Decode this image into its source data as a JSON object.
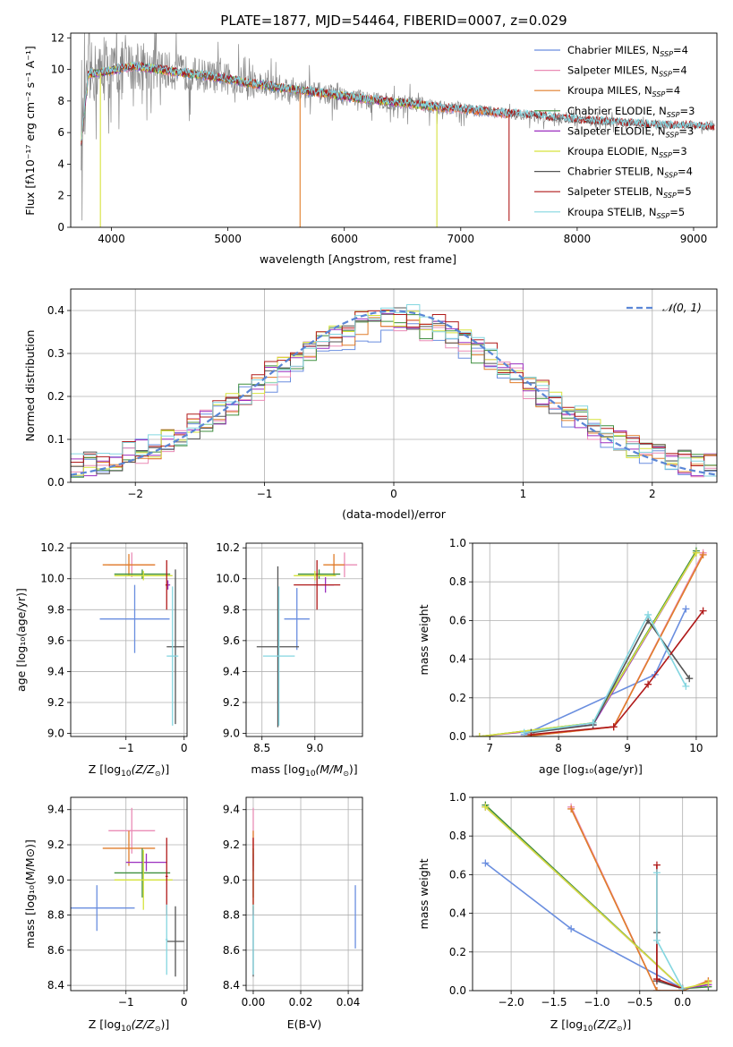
{
  "figure_title": "PLATE=1877, MJD=54464, FIBERID=0007, z=0.029",
  "series_colors": {
    "chab_miles": "#6a8edf",
    "salp_miles": "#ea8cb6",
    "krou_miles": "#e07d2a",
    "chab_elodie": "#3f8f3f",
    "salp_elodie": "#9b2fbf",
    "krou_elodie": "#d6e23c",
    "chab_stelib": "#555555",
    "salp_stelib": "#b01a1a",
    "krou_stelib": "#84d6e0",
    "data": "#888888",
    "normal": "#5a86d6"
  },
  "chart_data": [
    {
      "id": "spectrum",
      "type": "line",
      "title": "PLATE=1877, MJD=54464, FIBERID=0007, z=0.029",
      "xlabel": "wavelength [Angstrom, rest frame]",
      "ylabel": "Flux [fλ10⁻¹⁷ erg cm⁻² s⁻¹ A⁻¹]",
      "xlim": [
        3650,
        9200
      ],
      "ylim": [
        0,
        12.3
      ],
      "xticks": [
        4000,
        5000,
        6000,
        7000,
        8000,
        9000
      ],
      "yticks": [
        0,
        2,
        4,
        6,
        8,
        10,
        12
      ],
      "legend": [
        {
          "key": "chab_miles",
          "label": "Chabrier MILES, N",
          "sub": "SSP",
          "suffix": "=4"
        },
        {
          "key": "salp_miles",
          "label": "Salpeter MILES, N",
          "sub": "SSP",
          "suffix": "=4"
        },
        {
          "key": "krou_miles",
          "label": "Kroupa MILES, N",
          "sub": "SSP",
          "suffix": "=4"
        },
        {
          "key": "chab_elodie",
          "label": "Chabrier ELODIE, N",
          "sub": "SSP",
          "suffix": "=3"
        },
        {
          "key": "salp_elodie",
          "label": "Salpeter ELODIE, N",
          "sub": "SSP",
          "suffix": "=3"
        },
        {
          "key": "krou_elodie",
          "label": "Kroupa ELODIE, N",
          "sub": "SSP",
          "suffix": "=3"
        },
        {
          "key": "chab_stelib",
          "label": "Chabrier STELIB, N",
          "sub": "SSP",
          "suffix": "=4"
        },
        {
          "key": "salp_stelib",
          "label": "Salpeter STELIB, N",
          "sub": "SSP",
          "suffix": "=5"
        },
        {
          "key": "krou_stelib",
          "label": "Kroupa STELIB, N",
          "sub": "SSP",
          "suffix": "=5"
        }
      ],
      "continuum": [
        [
          3740,
          5.3
        ],
        [
          3800,
          9.7
        ],
        [
          3900,
          9.8
        ],
        [
          4000,
          9.9
        ],
        [
          4100,
          10.1
        ],
        [
          4200,
          10.2
        ],
        [
          4400,
          10.0
        ],
        [
          4600,
          9.8
        ],
        [
          4800,
          9.6
        ],
        [
          5000,
          9.4
        ],
        [
          5200,
          9.1
        ],
        [
          5400,
          8.9
        ],
        [
          5600,
          8.7
        ],
        [
          5800,
          8.5
        ],
        [
          6000,
          8.3
        ],
        [
          6200,
          8.1
        ],
        [
          6400,
          7.95
        ],
        [
          6600,
          7.8
        ],
        [
          6800,
          7.6
        ],
        [
          7000,
          7.5
        ],
        [
          7200,
          7.35
        ],
        [
          7400,
          7.2
        ],
        [
          7600,
          7.1
        ],
        [
          7800,
          6.95
        ],
        [
          8000,
          6.8
        ],
        [
          8200,
          6.7
        ],
        [
          8400,
          6.6
        ],
        [
          8600,
          6.5
        ],
        [
          8800,
          6.45
        ],
        [
          9000,
          6.4
        ],
        [
          9180,
          6.35
        ]
      ],
      "dips": [
        {
          "wave": 3905,
          "to": 0.0,
          "key": "krou_elodie"
        },
        {
          "wave": 5620,
          "to": 0.0,
          "key": "krou_miles"
        },
        {
          "wave": 6795,
          "to": 0.0,
          "key": "krou_elodie"
        },
        {
          "wave": 7415,
          "to": 0.4,
          "key": "salp_stelib"
        }
      ],
      "data_noise_amplitude": [
        [
          3740,
          3.5
        ],
        [
          4500,
          2.0
        ],
        [
          6000,
          1.0
        ],
        [
          7400,
          0.6
        ],
        [
          9000,
          0.3
        ]
      ]
    },
    {
      "id": "residuals",
      "type": "histogram",
      "xlabel": "(data-model)/error",
      "ylabel": "Normed distribution",
      "xlim": [
        -2.5,
        2.5
      ],
      "ylim": [
        0,
        0.45
      ],
      "xticks": [
        -2,
        -1,
        0,
        1,
        2
      ],
      "yticks": [
        0.0,
        0.1,
        0.2,
        0.3,
        0.4
      ],
      "legend_label": "𝒩(0, 1)",
      "normal": {
        "mean": 0,
        "sigma": 1
      }
    },
    {
      "id": "age_vs_Z",
      "type": "scatter",
      "xlabel_main": "Z [log",
      "xlabel_sub": "10",
      "xlabel_tail": "(Z/Z",
      "xlabel_sun": "⊙",
      "xlabel_end": ")]",
      "ylabel": "age  [log₁₀(age/yr)]",
      "xlim": [
        -1.95,
        0.05
      ],
      "ylim": [
        8.98,
        10.23
      ],
      "xticks": [
        -1,
        0
      ],
      "yticks": [
        9.0,
        9.2,
        9.4,
        9.6,
        9.8,
        10.0,
        10.2
      ],
      "points": [
        {
          "key": "chab_miles",
          "x": -0.85,
          "xerr": 0.6,
          "y": 9.74,
          "yerr": 0.22
        },
        {
          "key": "salp_miles",
          "x": -0.9,
          "xerr": 0.4,
          "y": 10.09,
          "yerr": 0.08
        },
        {
          "key": "krou_miles",
          "x": -0.95,
          "xerr": 0.45,
          "y": 10.09,
          "yerr": 0.07
        },
        {
          "key": "chab_elodie",
          "x": -0.72,
          "xerr": 0.48,
          "y": 10.03,
          "yerr": 0.03
        },
        {
          "key": "salp_elodie",
          "x": -0.28,
          "xerr": 0.04,
          "y": 9.96,
          "yerr": 0.03
        },
        {
          "key": "krou_elodie",
          "x": -0.7,
          "xerr": 0.5,
          "y": 10.02,
          "yerr": 0.03
        },
        {
          "key": "chab_stelib",
          "x": -0.15,
          "xerr": 0.15,
          "y": 9.56,
          "yerr": 0.5
        },
        {
          "key": "salp_stelib",
          "x": -0.3,
          "xerr": 0.02,
          "y": 9.96,
          "yerr": 0.16
        },
        {
          "key": "krou_stelib",
          "x": -0.2,
          "xerr": 0.1,
          "y": 9.5,
          "yerr": 0.45
        }
      ]
    },
    {
      "id": "age_vs_mass",
      "type": "scatter",
      "xlabel": "mass [log₁₀(M/M⊙)]",
      "xlabel_main": "mass [log",
      "xlabel_sub": "10",
      "xlabel_tail": "(M/M",
      "xlabel_sun": "⊙",
      "xlabel_end": ")]",
      "xlim": [
        8.35,
        9.45
      ],
      "ylim": [
        8.98,
        10.23
      ],
      "xticks": [
        8.5,
        9.0
      ],
      "yticks": [
        9.0,
        9.2,
        9.4,
        9.6,
        9.8,
        10.0,
        10.2
      ],
      "points": [
        {
          "key": "chab_miles",
          "x": 8.83,
          "xerr": 0.12,
          "y": 9.74,
          "yerr": 0.2
        },
        {
          "key": "salp_miles",
          "x": 9.28,
          "xerr": 0.12,
          "y": 10.09,
          "yerr": 0.08
        },
        {
          "key": "krou_miles",
          "x": 9.18,
          "xerr": 0.1,
          "y": 10.09,
          "yerr": 0.07
        },
        {
          "key": "chab_elodie",
          "x": 9.04,
          "xerr": 0.2,
          "y": 10.03,
          "yerr": 0.03
        },
        {
          "key": "salp_elodie",
          "x": 9.1,
          "xerr": 0.08,
          "y": 9.96,
          "yerr": 0.05
        },
        {
          "key": "krou_elodie",
          "x": 9.0,
          "xerr": 0.2,
          "y": 10.02,
          "yerr": 0.03
        },
        {
          "key": "chab_stelib",
          "x": 8.65,
          "xerr": 0.2,
          "y": 9.56,
          "yerr": 0.52
        },
        {
          "key": "salp_stelib",
          "x": 9.02,
          "xerr": 0.22,
          "y": 9.96,
          "yerr": 0.16
        },
        {
          "key": "krou_stelib",
          "x": 8.66,
          "xerr": 0.15,
          "y": 9.5,
          "yerr": 0.45
        }
      ]
    },
    {
      "id": "weight_vs_age",
      "type": "line",
      "xlabel": "age  [log₁₀(age/yr)]",
      "ylabel": "mass weight",
      "xlim": [
        6.75,
        10.3
      ],
      "ylim": [
        0,
        1
      ],
      "xticks": [
        7,
        8,
        9,
        10
      ],
      "yticks": [
        0.0,
        0.2,
        0.4,
        0.6,
        0.8,
        1.0
      ],
      "series": [
        {
          "key": "chab_miles",
          "x": [
            7.5,
            9.4,
            9.85
          ],
          "y": [
            0.01,
            0.32,
            0.66
          ]
        },
        {
          "key": "salp_miles",
          "x": [
            7.5,
            8.8,
            10.1
          ],
          "y": [
            0.0,
            0.05,
            0.95
          ]
        },
        {
          "key": "krou_miles",
          "x": [
            7.5,
            8.8,
            10.1
          ],
          "y": [
            0.0,
            0.05,
            0.94
          ]
        },
        {
          "key": "chab_elodie",
          "x": [
            6.85,
            8.5,
            10.0
          ],
          "y": [
            0.0,
            0.07,
            0.96
          ]
        },
        {
          "key": "salp_elodie",
          "x": [
            6.85,
            8.5,
            10.0
          ],
          "y": [
            0.0,
            0.06,
            0.95
          ]
        },
        {
          "key": "krou_elodie",
          "x": [
            6.85,
            8.5,
            10.0
          ],
          "y": [
            0.0,
            0.07,
            0.95
          ]
        },
        {
          "key": "chab_stelib",
          "x": [
            7.6,
            8.5,
            9.3,
            9.9
          ],
          "y": [
            0.02,
            0.06,
            0.6,
            0.3
          ]
        },
        {
          "key": "salp_stelib",
          "x": [
            7.6,
            8.8,
            9.3,
            10.1
          ],
          "y": [
            0.01,
            0.05,
            0.27,
            0.65
          ]
        },
        {
          "key": "krou_stelib",
          "x": [
            7.5,
            8.5,
            9.3,
            9.85
          ],
          "y": [
            0.02,
            0.07,
            0.63,
            0.26
          ]
        }
      ]
    },
    {
      "id": "mass_vs_Z",
      "type": "scatter",
      "ylabel": "mass [log₁₀(M/M⊙)]",
      "ylabel_main": "mass [log",
      "xlabel_main": "Z [log",
      "xlabel_sub": "10",
      "xlabel_tail": "(Z/Z",
      "xlabel_sun": "⊙",
      "xlabel_end": ")]",
      "xlim": [
        -1.95,
        0.05
      ],
      "ylim": [
        8.37,
        9.47
      ],
      "xticks": [
        -1,
        0
      ],
      "yticks": [
        8.4,
        8.6,
        8.8,
        9.0,
        9.2,
        9.4
      ],
      "points": [
        {
          "key": "chab_miles",
          "x": -1.5,
          "xerr": 0.65,
          "y": 8.84,
          "yerr": 0.13
        },
        {
          "key": "salp_miles",
          "x": -0.9,
          "xerr": 0.4,
          "y": 9.28,
          "yerr": 0.13
        },
        {
          "key": "krou_miles",
          "x": -0.95,
          "xerr": 0.45,
          "y": 9.18,
          "yerr": 0.1
        },
        {
          "key": "chab_elodie",
          "x": -0.72,
          "xerr": 0.48,
          "y": 9.04,
          "yerr": 0.14
        },
        {
          "key": "salp_elodie",
          "x": -0.65,
          "xerr": 0.35,
          "y": 9.1,
          "yerr": 0.05
        },
        {
          "key": "krou_elodie",
          "x": -0.7,
          "xerr": 0.5,
          "y": 9.0,
          "yerr": 0.17
        },
        {
          "key": "chab_stelib",
          "x": -0.15,
          "xerr": 0.15,
          "y": 8.65,
          "yerr": 0.2
        },
        {
          "key": "salp_stelib",
          "x": -0.3,
          "xerr": 0.02,
          "y": 9.02,
          "yerr": 0.22
        },
        {
          "key": "krou_stelib",
          "x": -0.3,
          "xerr": 0.02,
          "y": 8.66,
          "yerr": 0.2
        }
      ]
    },
    {
      "id": "mass_vs_ebv",
      "type": "scatter",
      "xlabel": "E(B-V)",
      "xlim": [
        -0.003,
        0.046
      ],
      "ylim": [
        8.37,
        9.47
      ],
      "xticks": [
        0.0,
        0.02,
        0.04
      ],
      "yticks": [
        8.4,
        8.6,
        8.8,
        9.0,
        9.2,
        9.4
      ],
      "points": [
        {
          "key": "chab_miles",
          "x": 0.043,
          "xerr": 0.0,
          "y": 8.79,
          "yerr": 0.18
        },
        {
          "key": "salp_miles",
          "x": 0.0,
          "xerr": 0.0,
          "y": 9.28,
          "yerr": 0.13
        },
        {
          "key": "krou_miles",
          "x": 0.0,
          "xerr": 0.0,
          "y": 9.18,
          "yerr": 0.1
        },
        {
          "key": "chab_elodie",
          "x": 0.0,
          "xerr": 0.0,
          "y": 9.04,
          "yerr": 0.14
        },
        {
          "key": "salp_elodie",
          "x": 0.0,
          "xerr": 0.0,
          "y": 9.1,
          "yerr": 0.05
        },
        {
          "key": "krou_elodie",
          "x": 0.0,
          "xerr": 0.0,
          "y": 9.0,
          "yerr": 0.17
        },
        {
          "key": "chab_stelib",
          "x": 0.0,
          "xerr": 0.0,
          "y": 8.65,
          "yerr": 0.2
        },
        {
          "key": "salp_stelib",
          "x": 0.0,
          "xerr": 0.0,
          "y": 9.02,
          "yerr": 0.22
        },
        {
          "key": "krou_stelib",
          "x": 0.0,
          "xerr": 0.0,
          "y": 8.66,
          "yerr": 0.2
        }
      ]
    },
    {
      "id": "weight_vs_Z",
      "type": "line",
      "xlabel_main": "Z [log",
      "xlabel_sub": "10",
      "xlabel_tail": "(Z/Z",
      "xlabel_sun": "⊙",
      "xlabel_end": ")]",
      "ylabel": "mass weight",
      "xlim": [
        -2.45,
        0.4
      ],
      "ylim": [
        0,
        1
      ],
      "xticks": [
        -2.0,
        -1.5,
        -1.0,
        -0.5,
        0.0
      ],
      "xticklabels": [
        "−2.0",
        "−1.5",
        "−1.0",
        "−0.5",
        "0.0"
      ],
      "yticks": [
        0.0,
        0.2,
        0.4,
        0.6,
        0.8,
        1.0
      ],
      "series": [
        {
          "key": "chab_miles",
          "x": [
            -2.3,
            -1.3,
            0.0
          ],
          "y": [
            0.66,
            0.32,
            0.01
          ]
        },
        {
          "key": "salp_miles",
          "x": [
            -1.3,
            -0.3,
            0.0,
            0.3
          ],
          "y": [
            0.95,
            0.0,
            0.0,
            0.05
          ]
        },
        {
          "key": "krou_miles",
          "x": [
            -1.3,
            -0.3,
            0.0,
            0.3
          ],
          "y": [
            0.94,
            0.0,
            0.0,
            0.05
          ]
        },
        {
          "key": "chab_elodie",
          "x": [
            -2.3,
            0.0,
            0.3
          ],
          "y": [
            0.96,
            0.01,
            0.02
          ]
        },
        {
          "key": "salp_elodie",
          "x": [
            -2.3,
            0.0,
            0.3
          ],
          "y": [
            0.95,
            0.01,
            0.03
          ]
        },
        {
          "key": "krou_elodie",
          "x": [
            -2.3,
            0.0,
            0.3
          ],
          "y": [
            0.95,
            0.01,
            0.04
          ]
        },
        {
          "key": "chab_stelib",
          "x": [
            -0.3,
            -0.3,
            0.0
          ],
          "y": [
            0.3,
            0.05,
            0.01
          ]
        },
        {
          "key": "salp_stelib",
          "x": [
            -0.3,
            -0.3,
            0.0
          ],
          "y": [
            0.65,
            0.06,
            0.01
          ]
        },
        {
          "key": "krou_stelib",
          "x": [
            -0.3,
            -0.3,
            0.0
          ],
          "y": [
            0.61,
            0.26,
            0.01
          ]
        }
      ]
    }
  ]
}
